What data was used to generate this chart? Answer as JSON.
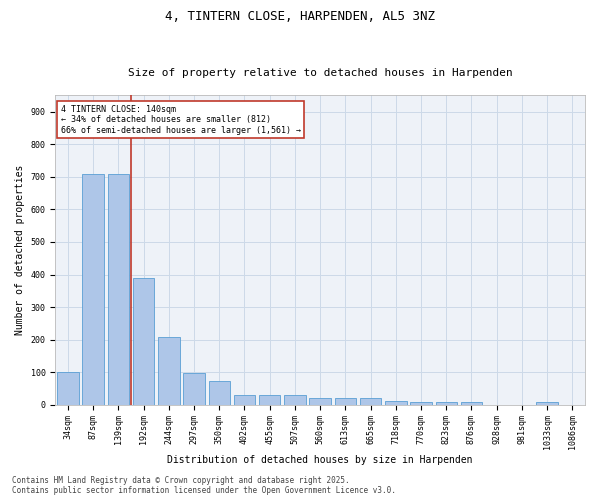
{
  "title": "4, TINTERN CLOSE, HARPENDEN, AL5 3NZ",
  "subtitle": "Size of property relative to detached houses in Harpenden",
  "xlabel": "Distribution of detached houses by size in Harpenden",
  "ylabel": "Number of detached properties",
  "categories": [
    "34sqm",
    "87sqm",
    "139sqm",
    "192sqm",
    "244sqm",
    "297sqm",
    "350sqm",
    "402sqm",
    "455sqm",
    "507sqm",
    "560sqm",
    "613sqm",
    "665sqm",
    "718sqm",
    "770sqm",
    "823sqm",
    "876sqm",
    "928sqm",
    "981sqm",
    "1033sqm",
    "1086sqm"
  ],
  "values": [
    100,
    710,
    710,
    390,
    207,
    97,
    73,
    30,
    30,
    30,
    20,
    20,
    20,
    10,
    8,
    8,
    8,
    0,
    0,
    7,
    0
  ],
  "bar_color": "#aec6e8",
  "bar_edgecolor": "#5a9fd4",
  "vline_x": 2.5,
  "vline_color": "#c0392b",
  "annotation_text": "4 TINTERN CLOSE: 140sqm\n← 34% of detached houses are smaller (812)\n66% of semi-detached houses are larger (1,561) →",
  "annotation_box_edgecolor": "#c0392b",
  "ylim": [
    0,
    950
  ],
  "yticks": [
    0,
    100,
    200,
    300,
    400,
    500,
    600,
    700,
    800,
    900
  ],
  "grid_color": "#ccd9e8",
  "bg_color": "#eef2f8",
  "footer": "Contains HM Land Registry data © Crown copyright and database right 2025.\nContains public sector information licensed under the Open Government Licence v3.0.",
  "title_fontsize": 9,
  "subtitle_fontsize": 8,
  "tick_fontsize": 6,
  "label_fontsize": 7,
  "footer_fontsize": 5.5,
  "annot_fontsize": 6
}
